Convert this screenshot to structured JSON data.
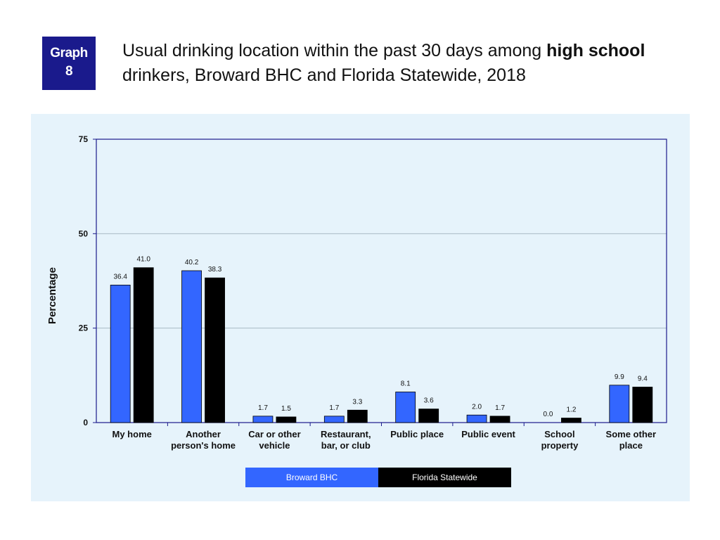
{
  "badge": {
    "line1": "Graph",
    "line2": "8"
  },
  "title": {
    "part1": "Usual drinking location within the past 30 days among ",
    "bold1": "high school",
    "part2": " drinkers, Broward BHC and Florida Statewide, 2018"
  },
  "legend": {
    "broward": "Broward BHC",
    "florida": "Florida Statewide"
  },
  "colors": {
    "broward": "#3366ff",
    "florida": "#000000",
    "panel": "#e6f3fb",
    "plot_border": "#1a1a8c"
  },
  "chart_data": {
    "type": "bar",
    "ylabel": "Percentage",
    "ylim": [
      0,
      75
    ],
    "yticks": [
      0,
      25,
      50,
      75
    ],
    "grid": true,
    "legend_position": "bottom",
    "categories": [
      [
        "My home"
      ],
      [
        "Another",
        "person's home"
      ],
      [
        "Car or other",
        "vehicle"
      ],
      [
        "Restaurant,",
        "bar, or club"
      ],
      [
        "Public place"
      ],
      [
        "Public event"
      ],
      [
        "School",
        "property"
      ],
      [
        "Some other",
        "place"
      ]
    ],
    "series": [
      {
        "name": "Broward BHC",
        "values": [
          36.4,
          40.2,
          1.7,
          1.7,
          8.1,
          2.0,
          0.0,
          9.9
        ]
      },
      {
        "name": "Florida Statewide",
        "values": [
          41.0,
          38.3,
          1.5,
          3.3,
          3.6,
          1.7,
          1.2,
          9.4
        ]
      }
    ]
  }
}
